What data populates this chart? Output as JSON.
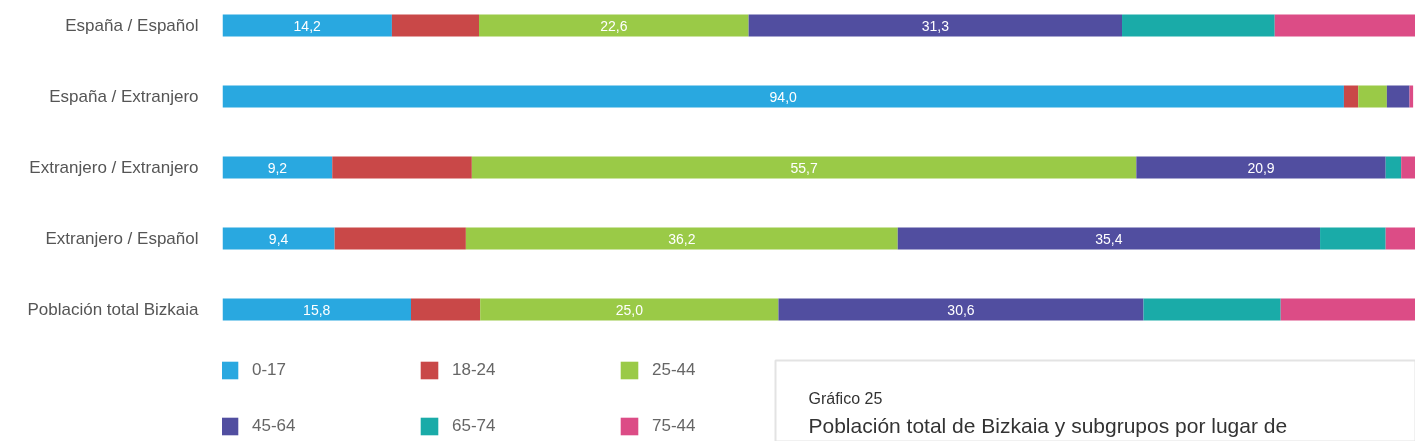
{
  "chart_data": {
    "type": "bar",
    "orientation": "horizontal",
    "stacked": true,
    "title": "Población total de Bizkaia y subgrupos por lugar de",
    "annotations": [
      "Gráfico 25"
    ],
    "categories": [
      "España / Español",
      "España / Extranjero",
      "Extranjero / Extranjero",
      "Extranjero / Español",
      "Población total Bizkaia"
    ],
    "xlim": [
      0,
      100
    ],
    "tick_labels": "y",
    "grid": false,
    "legend": "bottom left",
    "series": [
      {
        "name": "0-17",
        "color": "#29a8e0",
        "values": [
          14.2,
          94.0,
          9.2,
          9.4,
          15.8
        ],
        "value_labels": [
          "14,2",
          "94,0",
          "9,2",
          "9,4",
          "15,8"
        ]
      },
      {
        "name": "18-24",
        "color": "#c94848",
        "values": [
          7.3,
          1.2,
          11.7,
          11.0,
          5.8
        ],
        "value_labels": [
          null,
          null,
          null,
          null,
          null
        ]
      },
      {
        "name": "25-44",
        "color": "#9aca47",
        "values": [
          22.6,
          2.4,
          55.7,
          36.2,
          25.0
        ],
        "value_labels": [
          "22,6",
          null,
          "55,7",
          "36,2",
          "25,0"
        ]
      },
      {
        "name": "45-64",
        "color": "#514ea0",
        "values": [
          31.3,
          1.9,
          20.9,
          35.4,
          30.6
        ],
        "value_labels": [
          "31,3",
          null,
          "20,9",
          "35,4",
          "30,6"
        ]
      },
      {
        "name": "65-74",
        "color": "#1aaba8",
        "values": [
          12.8,
          0,
          1.3,
          5.5,
          11.5
        ],
        "value_labels": [
          null,
          null,
          null,
          null,
          null
        ]
      },
      {
        "name": "75-44",
        "color": "#dc4c86",
        "values": [
          11.8,
          0.3,
          1.2,
          2.5,
          11.3
        ],
        "value_labels": [
          null,
          null,
          null,
          null,
          null
        ]
      }
    ]
  }
}
